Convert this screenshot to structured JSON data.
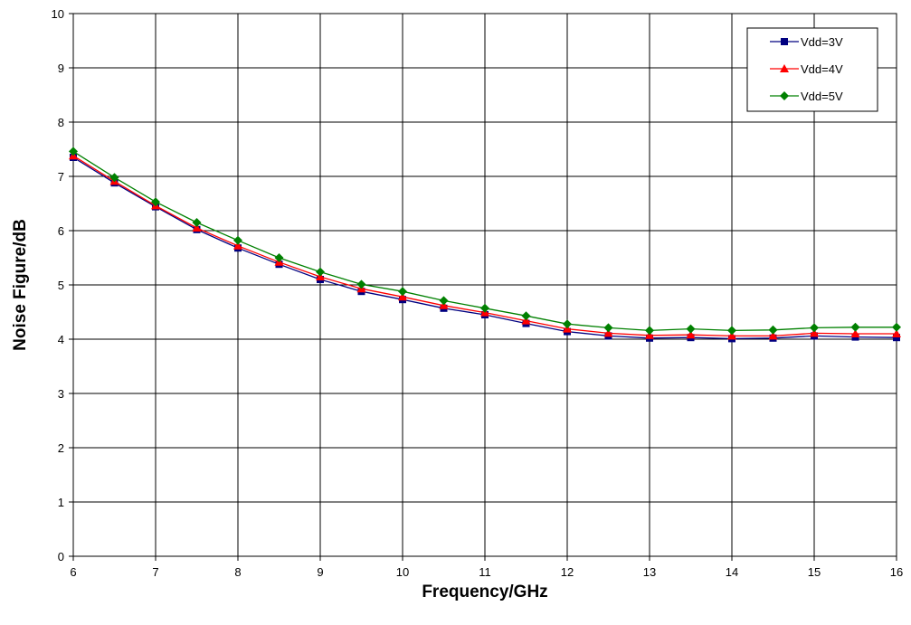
{
  "chart_data": {
    "type": "line",
    "title": "",
    "xlabel": "Frequency/GHz",
    "ylabel": "Noise Figure/dB",
    "xlim": [
      6,
      16
    ],
    "ylim": [
      0,
      10
    ],
    "xticks": [
      6,
      7,
      8,
      9,
      10,
      11,
      12,
      13,
      14,
      15,
      16
    ],
    "yticks": [
      0,
      1,
      2,
      3,
      4,
      5,
      6,
      7,
      8,
      9,
      10
    ],
    "grid": true,
    "legend_position": "top-right",
    "x": [
      6,
      6.5,
      7,
      7.5,
      8,
      8.5,
      9,
      9.5,
      10,
      10.5,
      11,
      11.5,
      12,
      12.5,
      13,
      13.5,
      14,
      14.5,
      15,
      15.5,
      16
    ],
    "series": [
      {
        "name": "Vdd=3V",
        "color": "#000080",
        "marker": "square",
        "values": [
          7.35,
          6.88,
          6.44,
          6.02,
          5.68,
          5.38,
          5.1,
          4.88,
          4.73,
          4.57,
          4.45,
          4.29,
          4.14,
          4.06,
          4.02,
          4.03,
          4.01,
          4.02,
          4.06,
          4.04,
          4.03
        ]
      },
      {
        "name": "Vdd=4V",
        "color": "#ff0000",
        "marker": "triangle",
        "values": [
          7.38,
          6.91,
          6.46,
          6.05,
          5.72,
          5.42,
          5.15,
          4.93,
          4.78,
          4.62,
          4.49,
          4.34,
          4.19,
          4.11,
          4.07,
          4.08,
          4.06,
          4.06,
          4.11,
          4.1,
          4.1
        ]
      },
      {
        "name": "Vdd=5V",
        "color": "#008000",
        "marker": "diamond",
        "values": [
          7.46,
          6.98,
          6.53,
          6.15,
          5.82,
          5.5,
          5.24,
          5.01,
          4.88,
          4.71,
          4.57,
          4.43,
          4.28,
          4.21,
          4.16,
          4.19,
          4.16,
          4.17,
          4.21,
          4.22,
          4.22
        ]
      }
    ]
  }
}
